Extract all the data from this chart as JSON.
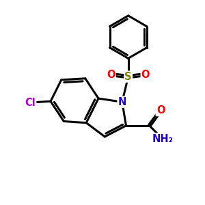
{
  "background": "#ffffff",
  "bond_color": "#000000",
  "bond_lw": 2.2,
  "atom_colors": {
    "N": "#2200cc",
    "O": "#ff0000",
    "Cl": "#aa00cc",
    "S": "#808000",
    "NH2": "#2200cc"
  },
  "font_size_atom": 10.5,
  "fig_w": 3.0,
  "fig_h": 3.0,
  "dpi": 100
}
